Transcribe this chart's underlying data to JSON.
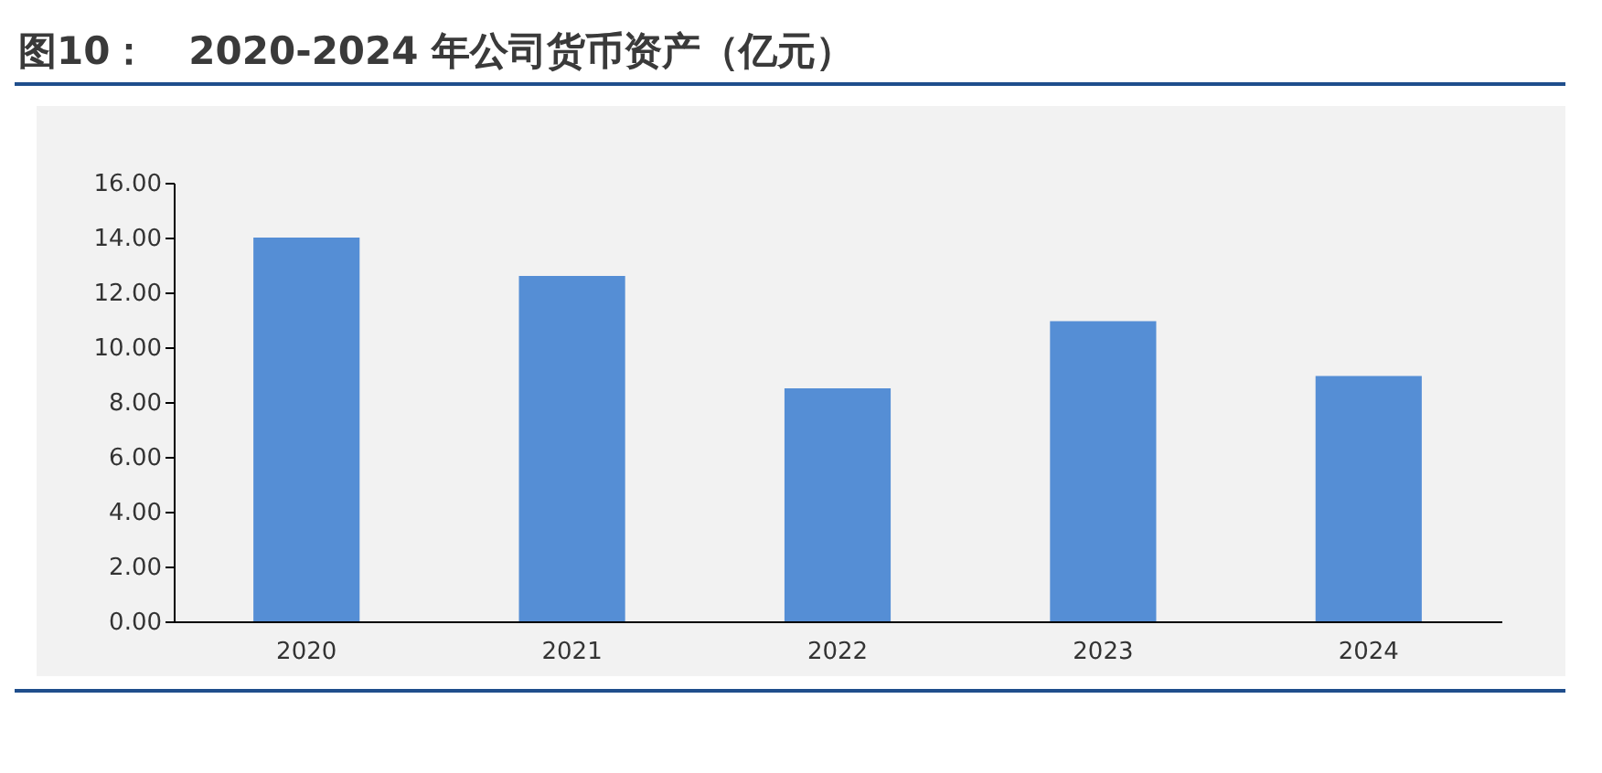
{
  "chart_data": {
    "type": "bar",
    "title": "图10：   2020-2024 年公司货币资产（亿元）",
    "categories": [
      "2020",
      "2021",
      "2022",
      "2023",
      "2024"
    ],
    "values": [
      14.0,
      12.6,
      8.5,
      10.95,
      8.95
    ],
    "color": "#558ed5",
    "ylim": [
      0,
      16
    ],
    "yticks": [
      {
        "value": 0,
        "label": "0.00"
      },
      {
        "value": 2,
        "label": "2.00"
      },
      {
        "value": 4,
        "label": "4.00"
      },
      {
        "value": 6,
        "label": "6.00"
      },
      {
        "value": 8,
        "label": "8.00"
      },
      {
        "value": 10,
        "label": "10.00"
      },
      {
        "value": 12,
        "label": "12.00"
      },
      {
        "value": 14,
        "label": "14.00"
      },
      {
        "value": 16,
        "label": "16.00"
      }
    ],
    "grid": false
  }
}
